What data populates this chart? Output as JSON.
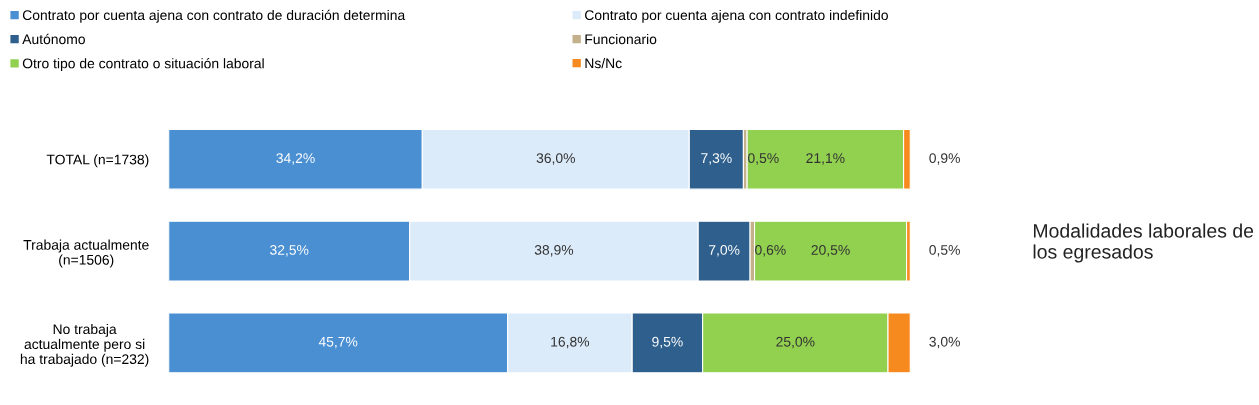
{
  "chart_data": {
    "type": "bar",
    "orientation": "horizontal",
    "stacked": true,
    "title": "Modalidades laborales de los egresados",
    "categories": [
      "TOTAL (n=1738)",
      "Trabaja actualmente\n(n=1506)",
      "No trabaja\nactualmente pero si\nha trabajado (n=232)"
    ],
    "series": [
      {
        "name": "Contrato por cuenta ajena con contrato de duración determina",
        "color": "#4a8fd2",
        "values": [
          34.2,
          32.5,
          45.7
        ],
        "value_labels": [
          "34,2%",
          "32,5%",
          "45,7%"
        ]
      },
      {
        "name": "Contrato por cuenta ajena con contrato indefinido",
        "color": "#dcebfa",
        "values": [
          36.0,
          38.9,
          16.8
        ],
        "value_labels": [
          "36,0%",
          "38,9%",
          "16,8%"
        ]
      },
      {
        "name": "Autónomo",
        "color": "#2f5f8c",
        "values": [
          7.3,
          7.0,
          9.5
        ],
        "value_labels": [
          "7,3%",
          "7,0%",
          "9,5%"
        ]
      },
      {
        "name": "Funcionario",
        "color": "#c4b08a",
        "values": [
          0.5,
          0.6,
          0.0
        ],
        "value_labels": [
          "0,5%",
          "0,6%",
          null
        ]
      },
      {
        "name": "Otro tipo de contrato o situación laboral",
        "color": "#92d050",
        "values": [
          21.1,
          20.5,
          25.0
        ],
        "value_labels": [
          "21,1%",
          "20,5%",
          "25,0%"
        ]
      },
      {
        "name": "Ns/Nc",
        "color": "#f78a1e",
        "values": [
          0.9,
          0.5,
          3.0
        ],
        "value_labels": [
          "0,9%",
          "0,5%",
          "3,0%"
        ]
      }
    ],
    "xlim": [
      0,
      100
    ],
    "tick_labels": "y",
    "grid": false,
    "legend": "top"
  }
}
